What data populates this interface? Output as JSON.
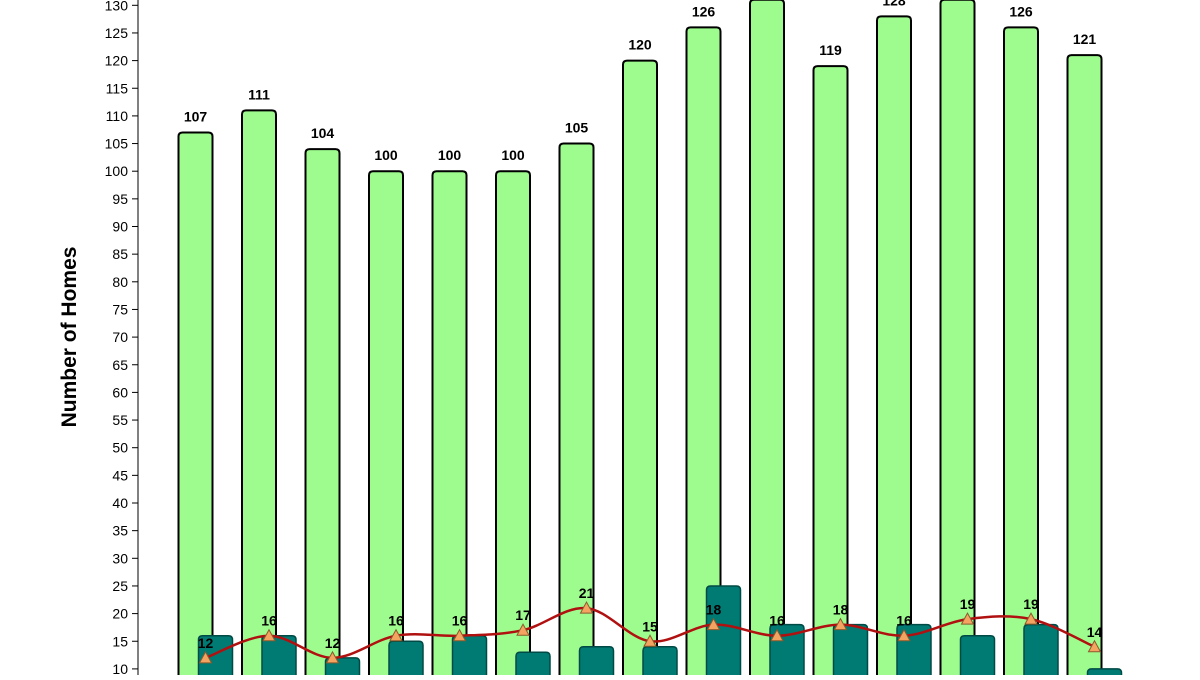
{
  "chart_data": {
    "type": "bar",
    "ylabel": "Number of Homes",
    "ylim": [
      10,
      130
    ],
    "ytick_step": 5,
    "grid": false,
    "categories": [
      "",
      "",
      "",
      "",
      "",
      "",
      "",
      "",
      "",
      "",
      "",
      "",
      "",
      "",
      ""
    ],
    "series": [
      {
        "kind": "bar",
        "color": "#9efc8e",
        "values": [
          107,
          111,
          104,
          100,
          100,
          100,
          105,
          120,
          126,
          131,
          119,
          128,
          131,
          126,
          121
        ],
        "labels": [
          "107",
          "111",
          "104",
          "100",
          "100",
          "100",
          "105",
          "120",
          "126",
          "",
          "119",
          "128",
          "",
          "126",
          "121"
        ]
      },
      {
        "kind": "bar",
        "color": "#007b74",
        "values": [
          16,
          16,
          12,
          15,
          16,
          13,
          14,
          14,
          25,
          18,
          18,
          18,
          16,
          18,
          10
        ],
        "labels": []
      },
      {
        "kind": "line",
        "color": "#b01010",
        "marker_color": "#f4a460",
        "values": [
          12,
          16,
          12,
          16,
          16,
          17,
          21,
          15,
          18,
          16,
          18,
          16,
          19,
          19,
          14
        ],
        "labels": [
          "12",
          "16",
          "12",
          "16",
          "16",
          "17",
          "21",
          "15",
          "18",
          "16",
          "18",
          "16",
          "19",
          "19",
          "14"
        ]
      }
    ]
  }
}
